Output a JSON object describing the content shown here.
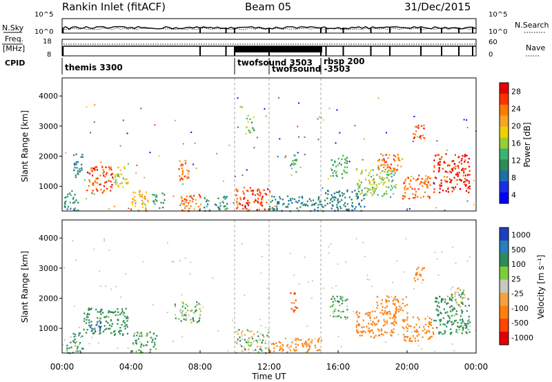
{
  "header": {
    "station": "Rankin Inlet (fitACF)",
    "beam": "Beam 05",
    "date": "31/Dec/2015"
  },
  "side_labels": {
    "nsky": "N.Sky",
    "freq_line1": "Freq.",
    "freq_line2": "[MHz]",
    "cpid": "CPID",
    "nsearch": "N.Search",
    "nave": "Nave"
  },
  "sky_axis": {
    "left_ticks": [
      "10^5",
      "10^0"
    ],
    "right_ticks": [
      "10^5",
      "10^0"
    ]
  },
  "freq_axis": {
    "left_ticks": [
      "18",
      "8"
    ],
    "right_ticks": [
      "60",
      "0"
    ]
  },
  "cpid_blocks": [
    {
      "label": "themis 3300",
      "start_hour": 0.0
    },
    {
      "label": "twofsound 3503",
      "start_hour": 10.0
    },
    {
      "label": "twofsound -3503",
      "start_hour": 12.0
    },
    {
      "label": "rbsp 200",
      "start_hour": 15.0
    }
  ],
  "x_axis": {
    "ticks": [
      "00:00",
      "04:00",
      "08:00",
      "12:00",
      "16:00",
      "20:00",
      "00:00"
    ],
    "label": "Time UT",
    "range_hours": [
      0,
      24
    ]
  },
  "power_colorbar": {
    "label": "Power [dB]",
    "ticks": [
      "28",
      "24",
      "20",
      "16",
      "12",
      "8",
      "4"
    ],
    "colors": [
      "#e50000",
      "#ff3300",
      "#ff7a00",
      "#f5a623",
      "#f0d000",
      "#9acd32",
      "#3cb371",
      "#2e8b57",
      "#1f6fa8",
      "#1a2ee6",
      "#0000ff"
    ]
  },
  "velocity_colorbar": {
    "label": "Velocity [m s⁻¹]",
    "ticks": [
      "1000",
      "500",
      "100",
      "25",
      "-25",
      "-100",
      "-500",
      "-1000"
    ],
    "colors": [
      "#1f3fbf",
      "#2a7fb8",
      "#2e8b57",
      "#7ccd3a",
      "#c8c8c0",
      "#f2a340",
      "#ff7f0e",
      "#ff4500",
      "#e00000"
    ]
  },
  "chart_data": [
    {
      "type": "heatmap",
      "title": "Rankin Inlet (fitACF) Beam 05 31/Dec/2015",
      "panel": "power",
      "xlabel": "Time UT",
      "ylabel": "Slant Range [km]",
      "xlim": [
        0,
        24
      ],
      "ylim": [
        180,
        4600
      ],
      "yticks": [
        1000,
        2000,
        3000,
        4000
      ],
      "colorbar": "Power [dB]",
      "clim": [
        0,
        30
      ],
      "regions": [
        {
          "t0": 0.1,
          "t1": 0.9,
          "r0": 200,
          "r1": 900,
          "value": 12
        },
        {
          "t0": 0.6,
          "t1": 1.2,
          "r0": 1300,
          "r1": 2100,
          "value": 10
        },
        {
          "t0": 1.4,
          "t1": 2.9,
          "r0": 800,
          "r1": 1700,
          "value": 28
        },
        {
          "t0": 2.9,
          "t1": 3.8,
          "r0": 1000,
          "r1": 1700,
          "value": 20
        },
        {
          "t0": 4.0,
          "t1": 5.0,
          "r0": 200,
          "r1": 900,
          "value": 22
        },
        {
          "t0": 5.2,
          "t1": 5.9,
          "r0": 300,
          "r1": 800,
          "value": 14
        },
        {
          "t0": 6.6,
          "t1": 7.4,
          "r0": 1200,
          "r1": 1900,
          "value": 26
        },
        {
          "t0": 6.6,
          "t1": 8.0,
          "r0": 200,
          "r1": 750,
          "value": 26
        },
        {
          "t0": 8.2,
          "t1": 9.6,
          "r0": 200,
          "r1": 700,
          "value": 12
        },
        {
          "t0": 10.0,
          "t1": 12.0,
          "r0": 200,
          "r1": 1000,
          "value": 28
        },
        {
          "t0": 10.6,
          "t1": 11.1,
          "r0": 2800,
          "r1": 3400,
          "value": 16
        },
        {
          "t0": 12.0,
          "t1": 15.0,
          "r0": 200,
          "r1": 700,
          "value": 10
        },
        {
          "t0": 13.2,
          "t1": 13.6,
          "r0": 1500,
          "r1": 2200,
          "value": 16
        },
        {
          "t0": 15.5,
          "t1": 16.5,
          "r0": 1300,
          "r1": 2100,
          "value": 14
        },
        {
          "t0": 15.0,
          "t1": 17.5,
          "r0": 200,
          "r1": 900,
          "value": 10
        },
        {
          "t0": 17.0,
          "t1": 19.4,
          "r0": 700,
          "r1": 1600,
          "value": 18
        },
        {
          "t0": 18.2,
          "t1": 19.7,
          "r0": 1500,
          "r1": 2100,
          "value": 26
        },
        {
          "t0": 19.7,
          "t1": 21.3,
          "r0": 600,
          "r1": 1400,
          "value": 26
        },
        {
          "t0": 21.5,
          "t1": 23.6,
          "r0": 800,
          "r1": 2100,
          "value": 30
        },
        {
          "t0": 20.3,
          "t1": 21.0,
          "r0": 2600,
          "r1": 3100,
          "value": 28
        }
      ]
    },
    {
      "type": "heatmap",
      "panel": "velocity",
      "xlabel": "Time UT",
      "ylabel": "Slant Range [km]",
      "xlim": [
        0,
        24
      ],
      "ylim": [
        180,
        4600
      ],
      "yticks": [
        1000,
        2000,
        3000,
        4000
      ],
      "colorbar": "Velocity [m s⁻¹]",
      "clim": [
        -1000,
        1000
      ],
      "regions": [
        {
          "t0": 0.2,
          "t1": 1.2,
          "r0": 200,
          "r1": 900,
          "value": 100
        },
        {
          "t0": 1.2,
          "t1": 3.8,
          "r0": 800,
          "r1": 1700,
          "value": 150
        },
        {
          "t0": 1.5,
          "t1": 2.2,
          "r0": 900,
          "r1": 1300,
          "value": 700
        },
        {
          "t0": 4.0,
          "t1": 5.5,
          "r0": 200,
          "r1": 900,
          "value": 100
        },
        {
          "t0": 6.5,
          "t1": 8.0,
          "r0": 1200,
          "r1": 1900,
          "value": 50
        },
        {
          "t0": 10.0,
          "t1": 12.0,
          "r0": 200,
          "r1": 1000,
          "value": 30
        },
        {
          "t0": 12.0,
          "t1": 15.0,
          "r0": 200,
          "r1": 700,
          "value": -150
        },
        {
          "t0": 13.2,
          "t1": 13.6,
          "r0": 1500,
          "r1": 2200,
          "value": -500
        },
        {
          "t0": 15.5,
          "t1": 16.5,
          "r0": 1300,
          "r1": 2100,
          "value": 100
        },
        {
          "t0": 17.0,
          "t1": 19.4,
          "r0": 700,
          "r1": 1600,
          "value": -300
        },
        {
          "t0": 18.2,
          "t1": 20.0,
          "r0": 1500,
          "r1": 2100,
          "value": -400
        },
        {
          "t0": 19.7,
          "t1": 21.5,
          "r0": 600,
          "r1": 1400,
          "value": -300
        },
        {
          "t0": 21.5,
          "t1": 23.6,
          "r0": 800,
          "r1": 2100,
          "value": 150
        },
        {
          "t0": 22.5,
          "t1": 23.3,
          "r0": 1700,
          "r1": 2400,
          "value": 0
        },
        {
          "t0": 20.3,
          "t1": 21.0,
          "r0": 2600,
          "r1": 3100,
          "value": -300
        }
      ]
    }
  ]
}
